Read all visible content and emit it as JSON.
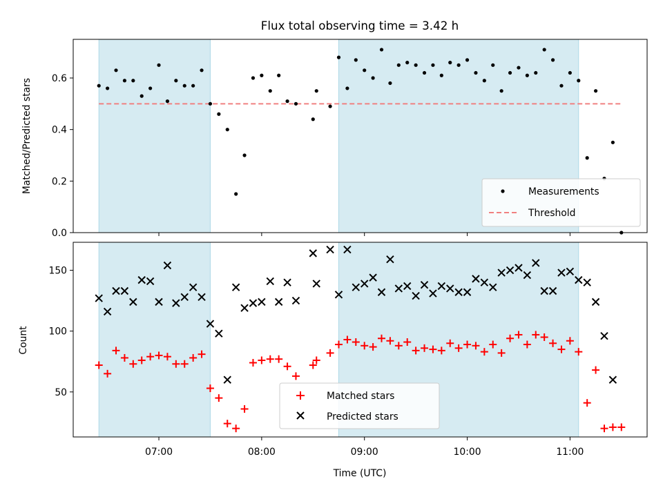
{
  "title": "Flux total observing time = 3.42 h",
  "chart_data": [
    {
      "type": "scatter",
      "panel": "top",
      "title": "Flux total observing time = 3.42 h",
      "xlabel": "",
      "ylabel": "Matched/Predicted stars",
      "x_tick_labels": [
        "07:00",
        "08:00",
        "09:00",
        "10:00",
        "11:00"
      ],
      "x_ticks_shown_labels": false,
      "xlim": [
        "06:10",
        "11:45"
      ],
      "ylim": [
        0,
        0.75
      ],
      "y_ticks": [
        0.0,
        0.2,
        0.4,
        0.6
      ],
      "y_tick_labels": [
        "0.0",
        "0.2",
        "0.4",
        "0.6"
      ],
      "grid": false,
      "legend_position": "lower-right",
      "shaded_intervals": [
        {
          "start": "06:25",
          "end": "07:30",
          "color": "#add8e6"
        },
        {
          "start": "08:45",
          "end": "11:05",
          "color": "#add8e6"
        }
      ],
      "threshold": {
        "name": "Threshold",
        "y": 0.5,
        "x_start": "06:25",
        "x_end": "11:30",
        "color": "#f08080",
        "style": "dashed"
      },
      "series": [
        {
          "name": "Measurements",
          "marker": "dot",
          "color": "#000000",
          "x": [
            "06:25",
            "06:30",
            "06:35",
            "06:40",
            "06:45",
            "06:50",
            "06:55",
            "07:00",
            "07:05",
            "07:10",
            "07:15",
            "07:20",
            "07:25",
            "07:30",
            "07:35",
            "07:40",
            "07:45",
            "07:50",
            "07:55",
            "08:00",
            "08:05",
            "08:10",
            "08:15",
            "08:20",
            "08:30",
            "08:32",
            "08:40",
            "08:45",
            "08:50",
            "08:55",
            "09:00",
            "09:05",
            "09:10",
            "09:15",
            "09:20",
            "09:25",
            "09:30",
            "09:35",
            "09:40",
            "09:45",
            "09:50",
            "09:55",
            "10:00",
            "10:05",
            "10:10",
            "10:15",
            "10:20",
            "10:25",
            "10:30",
            "10:35",
            "10:40",
            "10:45",
            "10:50",
            "10:55",
            "11:00",
            "11:05",
            "11:10",
            "11:15",
            "11:20",
            "11:25",
            "11:30"
          ],
          "y": [
            0.57,
            0.56,
            0.63,
            0.59,
            0.59,
            0.53,
            0.56,
            0.65,
            0.51,
            0.59,
            0.57,
            0.57,
            0.63,
            0.5,
            0.46,
            0.4,
            0.15,
            0.3,
            0.6,
            0.61,
            0.55,
            0.61,
            0.51,
            0.5,
            0.44,
            0.55,
            0.49,
            0.68,
            0.56,
            0.67,
            0.63,
            0.6,
            0.71,
            0.58,
            0.65,
            0.66,
            0.65,
            0.62,
            0.65,
            0.61,
            0.66,
            0.65,
            0.67,
            0.62,
            0.59,
            0.65,
            0.55,
            0.62,
            0.64,
            0.61,
            0.62,
            0.71,
            0.67,
            0.57,
            0.62,
            0.59,
            0.29,
            0.55,
            0.21,
            0.35,
            0.0
          ]
        }
      ]
    },
    {
      "type": "scatter",
      "panel": "bottom",
      "title": "",
      "xlabel": "Time (UTC)",
      "ylabel": "Count",
      "x_tick_labels": [
        "07:00",
        "08:00",
        "09:00",
        "10:00",
        "11:00"
      ],
      "xlim": [
        "06:10",
        "11:45"
      ],
      "ylim": [
        13,
        173
      ],
      "y_ticks": [
        50,
        100,
        150
      ],
      "y_tick_labels": [
        "50",
        "100",
        "150"
      ],
      "grid": false,
      "legend_position": "lower-center",
      "shaded_intervals": [
        {
          "start": "06:25",
          "end": "07:30",
          "color": "#add8e6"
        },
        {
          "start": "08:45",
          "end": "11:05",
          "color": "#add8e6"
        }
      ],
      "series": [
        {
          "name": "Matched stars",
          "marker": "plus",
          "color": "#ff0000",
          "x": [
            "06:25",
            "06:30",
            "06:35",
            "06:40",
            "06:45",
            "06:50",
            "06:55",
            "07:00",
            "07:05",
            "07:10",
            "07:15",
            "07:20",
            "07:25",
            "07:30",
            "07:35",
            "07:40",
            "07:45",
            "07:50",
            "07:55",
            "08:00",
            "08:05",
            "08:10",
            "08:15",
            "08:20",
            "08:30",
            "08:32",
            "08:40",
            "08:45",
            "08:50",
            "08:55",
            "09:00",
            "09:05",
            "09:10",
            "09:15",
            "09:20",
            "09:25",
            "09:30",
            "09:35",
            "09:40",
            "09:45",
            "09:50",
            "09:55",
            "10:00",
            "10:05",
            "10:10",
            "10:15",
            "10:20",
            "10:25",
            "10:30",
            "10:35",
            "10:40",
            "10:45",
            "10:50",
            "10:55",
            "11:00",
            "11:05",
            "11:10",
            "11:15",
            "11:20",
            "11:25",
            "11:30"
          ],
          "y": [
            72,
            65,
            84,
            78,
            73,
            76,
            79,
            80,
            79,
            73,
            73,
            78,
            81,
            53,
            45,
            24,
            20,
            36,
            74,
            76,
            77,
            77,
            71,
            63,
            72,
            76,
            82,
            89,
            93,
            91,
            88,
            87,
            94,
            92,
            88,
            91,
            84,
            86,
            85,
            84,
            90,
            86,
            89,
            88,
            83,
            89,
            82,
            94,
            97,
            89,
            97,
            95,
            90,
            85,
            92,
            83,
            41,
            68,
            20,
            21,
            21
          ]
        },
        {
          "name": "Predicted stars",
          "marker": "x",
          "color": "#000000",
          "x": [
            "06:25",
            "06:30",
            "06:35",
            "06:40",
            "06:45",
            "06:50",
            "06:55",
            "07:00",
            "07:05",
            "07:10",
            "07:15",
            "07:20",
            "07:25",
            "07:30",
            "07:35",
            "07:40",
            "07:45",
            "07:50",
            "07:55",
            "08:00",
            "08:05",
            "08:10",
            "08:15",
            "08:20",
            "08:30",
            "08:32",
            "08:40",
            "08:45",
            "08:50",
            "08:55",
            "09:00",
            "09:05",
            "09:10",
            "09:15",
            "09:20",
            "09:25",
            "09:30",
            "09:35",
            "09:40",
            "09:45",
            "09:50",
            "09:55",
            "10:00",
            "10:05",
            "10:10",
            "10:15",
            "10:20",
            "10:25",
            "10:30",
            "10:35",
            "10:40",
            "10:45",
            "10:50",
            "10:55",
            "11:00",
            "11:05",
            "11:10",
            "11:15",
            "11:20",
            "11:25"
          ],
          "y": [
            127,
            116,
            133,
            133,
            124,
            142,
            141,
            124,
            154,
            123,
            128,
            136,
            128,
            106,
            98,
            60,
            136,
            119,
            123,
            124,
            141,
            124,
            140,
            125,
            164,
            139,
            167,
            130,
            167,
            136,
            139,
            144,
            132,
            159,
            135,
            137,
            129,
            138,
            131,
            137,
            135,
            132,
            132,
            143,
            140,
            136,
            148,
            150,
            152,
            146,
            156,
            133,
            133,
            148,
            149,
            142,
            140,
            124,
            96,
            60
          ]
        }
      ]
    }
  ]
}
